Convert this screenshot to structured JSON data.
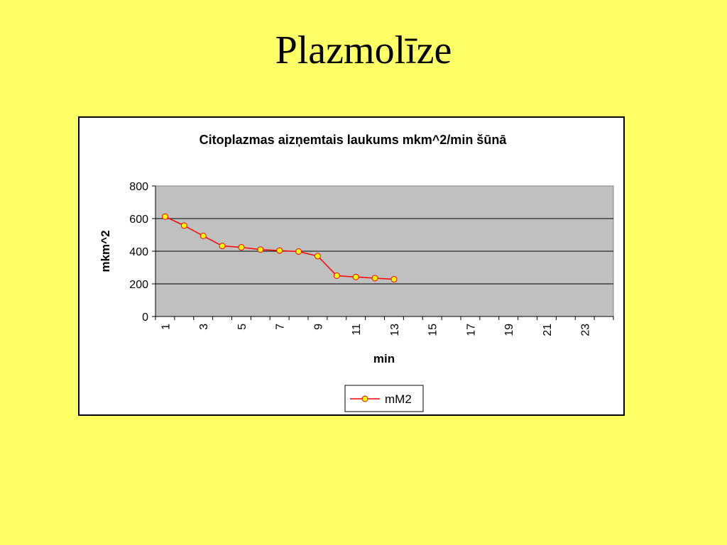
{
  "slide": {
    "title": "Plazmolīze"
  },
  "chart_data": {
    "type": "line",
    "title": "Citoplazmas aizņemtais laukums mkm^2/min šūnā",
    "xlabel": "min",
    "ylabel": "mkm^2",
    "x_categories": [
      1,
      2,
      3,
      4,
      5,
      6,
      7,
      8,
      9,
      10,
      11,
      12,
      13,
      14,
      15,
      16,
      17,
      18,
      19,
      20,
      21,
      22,
      23,
      24
    ],
    "x_tick_labels_shown": [
      "1",
      "3",
      "5",
      "7",
      "9",
      "11",
      "13",
      "15",
      "17",
      "19",
      "21",
      "23"
    ],
    "ylim": [
      0,
      800
    ],
    "y_ticks": [
      0,
      200,
      400,
      600,
      800
    ],
    "grid": true,
    "plot_background": "#c0c0c0",
    "legend_position": "bottom",
    "series": [
      {
        "name": "mM2",
        "color": "#ff0000",
        "marker_color": "#ffff00",
        "x": [
          1,
          2,
          3,
          4,
          5,
          6,
          7,
          8,
          9,
          10,
          11,
          12,
          13
        ],
        "values": [
          612,
          557,
          494,
          432,
          424,
          410,
          404,
          398,
          370,
          250,
          242,
          235,
          228
        ]
      }
    ]
  }
}
